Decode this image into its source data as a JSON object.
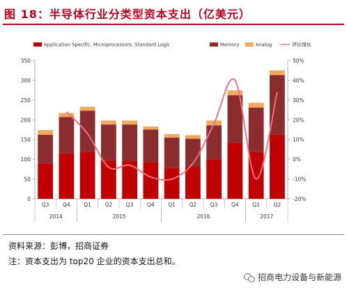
{
  "header": {
    "title": "图 18：半导体行业分类型资本支出（亿美元）"
  },
  "chart_data": {
    "type": "bar",
    "stacked": true,
    "categories": [
      "Q3",
      "Q4",
      "Q1",
      "Q2",
      "Q3",
      "Q4",
      "Q1",
      "Q2",
      "Q3",
      "Q4",
      "Q1",
      "Q2"
    ],
    "year_groups": [
      {
        "label": "2014",
        "start": 0,
        "end": 1
      },
      {
        "label": "2015",
        "start": 2,
        "end": 5
      },
      {
        "label": "2016",
        "start": 6,
        "end": 9
      },
      {
        "label": "2017",
        "start": 10,
        "end": 11
      }
    ],
    "series": [
      {
        "name": "Application Specific, Microprocessors, Standard Logic",
        "color": "#c00000",
        "values": [
          90,
          115,
          118,
          97,
          96,
          93,
          78,
          80,
          100,
          142,
          118,
          163
        ]
      },
      {
        "name": "Memory",
        "color": "#8b2c2e",
        "values": [
          72,
          92,
          105,
          91,
          92,
          82,
          77,
          72,
          86,
          120,
          113,
          150
        ]
      },
      {
        "name": "Analog",
        "color": "#f0a75e",
        "values": [
          12,
          10,
          10,
          10,
          10,
          8,
          9,
          9,
          12,
          12,
          12,
          12
        ]
      }
    ],
    "line": {
      "name": "环比增长",
      "color": "#f07080",
      "values": [
        null,
        24,
        13,
        -4,
        -3,
        -9,
        -10,
        -2,
        18,
        40,
        -10,
        34
      ]
    },
    "ylim": [
      0,
      350
    ],
    "yticks": [
      0,
      50,
      100,
      150,
      200,
      250,
      300,
      350
    ],
    "y2lim": [
      -20,
      50
    ],
    "y2ticks": [
      "-20%",
      "-10%",
      "0%",
      "10%",
      "20%",
      "30%",
      "40%",
      "50%"
    ],
    "y2tick_values": [
      -20,
      -10,
      0,
      10,
      20,
      30,
      40,
      50
    ],
    "legend_position": "top",
    "grid": false
  },
  "footer": {
    "source": "资料来源：彭博，招商证券",
    "note": "注：资本支出为 top20 企业的资本支出总和。",
    "watermark": "招商电力设备与新能源"
  }
}
